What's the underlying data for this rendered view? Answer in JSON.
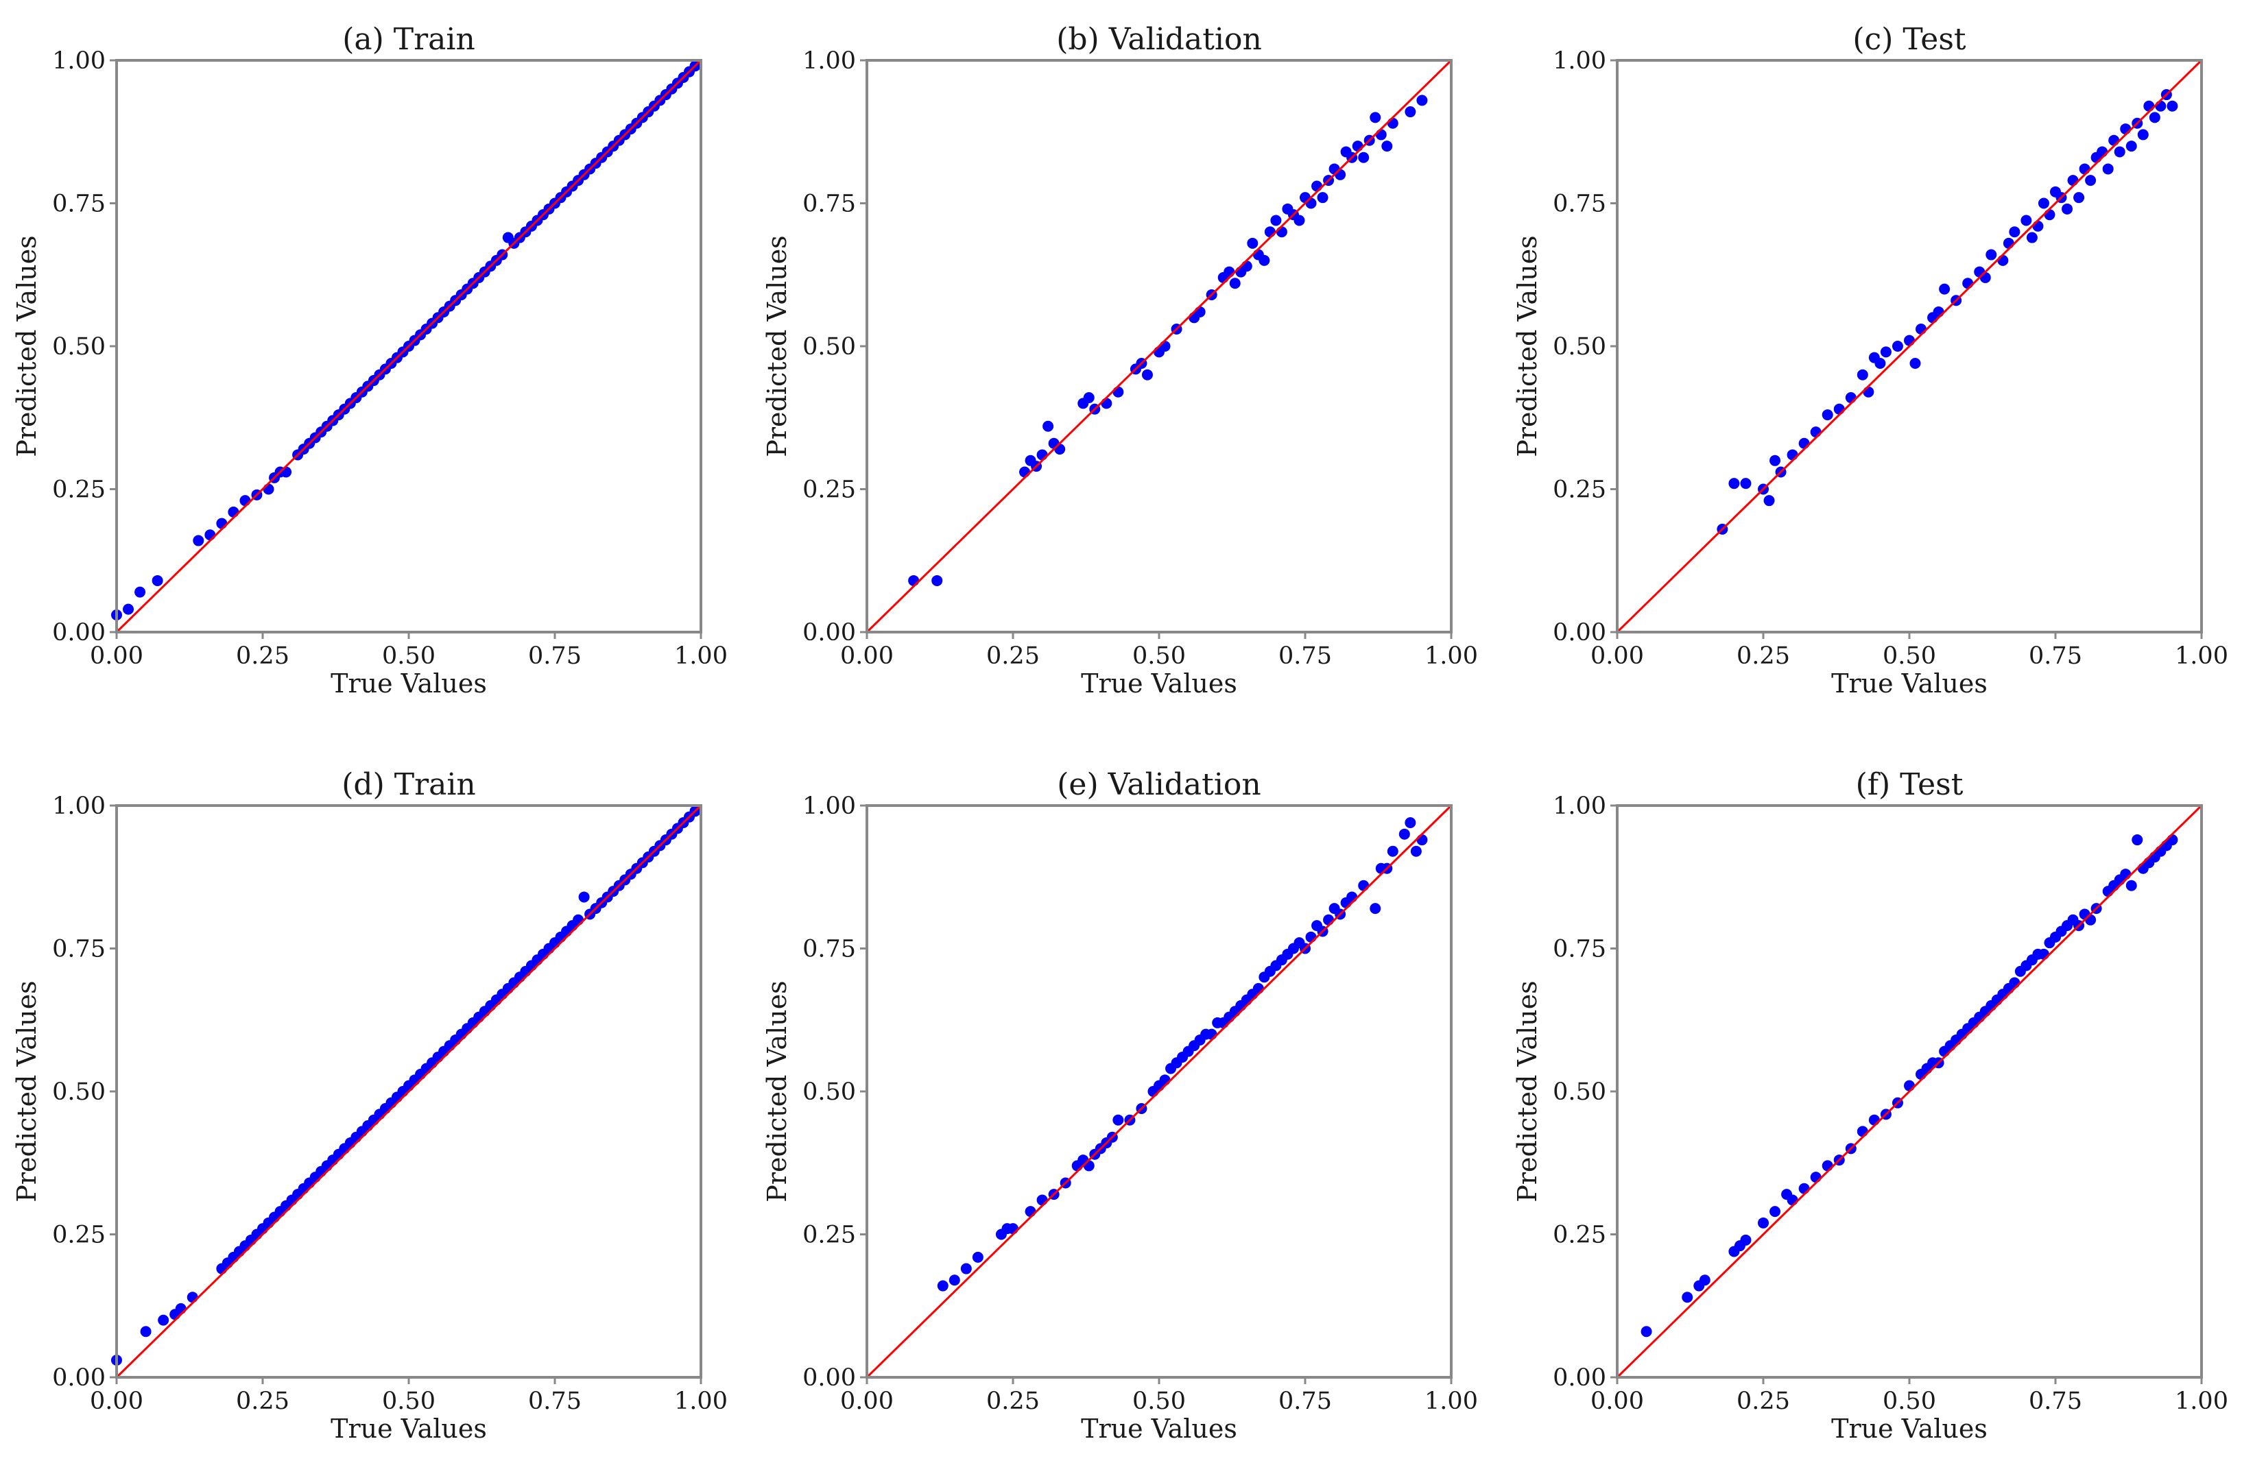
{
  "colors": {
    "point": "#0000ff",
    "ideal_line": "#ff0000",
    "frame": "#888888",
    "text": "#1a1a1a"
  },
  "chart_data": [
    {
      "type": "scatter",
      "title": "(a) Train",
      "xlabel": "True Values",
      "ylabel": "Predicted Values",
      "xlim": [
        0,
        1
      ],
      "ylim": [
        0,
        1
      ],
      "xticks": [
        "0.00",
        "0.25",
        "0.50",
        "0.75",
        "1.00"
      ],
      "yticks": [
        "0.00",
        "0.25",
        "0.50",
        "0.75",
        "1.00"
      ],
      "grid": false,
      "reference_line": [
        [
          0,
          0
        ],
        [
          1,
          1
        ]
      ],
      "series": [
        {
          "x": [
            0.0,
            0.02,
            0.04,
            0.07,
            0.14,
            0.16,
            0.18,
            0.2,
            0.22,
            0.24,
            0.26,
            0.27,
            0.28,
            0.29,
            0.31,
            0.32,
            0.33,
            0.34,
            0.35,
            0.36,
            0.37,
            0.38,
            0.39,
            0.4,
            0.41,
            0.42,
            0.43,
            0.44,
            0.45,
            0.46,
            0.47,
            0.48,
            0.49,
            0.5,
            0.51,
            0.52,
            0.53,
            0.54,
            0.55,
            0.56,
            0.57,
            0.58,
            0.59,
            0.6,
            0.61,
            0.62,
            0.63,
            0.64,
            0.65,
            0.66,
            0.67,
            0.68,
            0.69,
            0.7,
            0.71,
            0.72,
            0.73,
            0.74,
            0.75,
            0.76,
            0.77,
            0.78,
            0.79,
            0.8,
            0.81,
            0.82,
            0.83,
            0.84,
            0.85,
            0.86,
            0.87,
            0.88,
            0.89,
            0.9,
            0.91,
            0.92,
            0.93,
            0.94,
            0.95,
            0.96,
            0.97,
            0.98,
            0.99
          ],
          "y": [
            0.03,
            0.04,
            0.07,
            0.09,
            0.16,
            0.17,
            0.19,
            0.21,
            0.23,
            0.24,
            0.25,
            0.27,
            0.28,
            0.28,
            0.31,
            0.32,
            0.33,
            0.34,
            0.35,
            0.36,
            0.37,
            0.38,
            0.39,
            0.4,
            0.41,
            0.42,
            0.43,
            0.44,
            0.45,
            0.46,
            0.47,
            0.48,
            0.49,
            0.5,
            0.51,
            0.52,
            0.53,
            0.54,
            0.55,
            0.56,
            0.57,
            0.58,
            0.59,
            0.6,
            0.61,
            0.62,
            0.63,
            0.64,
            0.65,
            0.66,
            0.69,
            0.68,
            0.69,
            0.7,
            0.71,
            0.72,
            0.73,
            0.74,
            0.75,
            0.76,
            0.77,
            0.78,
            0.79,
            0.8,
            0.81,
            0.82,
            0.83,
            0.84,
            0.85,
            0.86,
            0.87,
            0.88,
            0.89,
            0.9,
            0.91,
            0.92,
            0.93,
            0.94,
            0.95,
            0.96,
            0.97,
            0.98,
            0.99
          ]
        }
      ]
    },
    {
      "type": "scatter",
      "title": "(b) Validation",
      "xlabel": "True Values",
      "ylabel": "Predicted Values",
      "xlim": [
        0,
        1
      ],
      "ylim": [
        0,
        1
      ],
      "xticks": [
        "0.00",
        "0.25",
        "0.50",
        "0.75",
        "1.00"
      ],
      "yticks": [
        "0.00",
        "0.25",
        "0.50",
        "0.75",
        "1.00"
      ],
      "grid": false,
      "reference_line": [
        [
          0,
          0
        ],
        [
          1,
          1
        ]
      ],
      "series": [
        {
          "x": [
            0.08,
            0.12,
            0.27,
            0.28,
            0.29,
            0.3,
            0.31,
            0.32,
            0.33,
            0.37,
            0.38,
            0.39,
            0.41,
            0.43,
            0.46,
            0.47,
            0.48,
            0.5,
            0.51,
            0.53,
            0.56,
            0.57,
            0.59,
            0.61,
            0.62,
            0.63,
            0.64,
            0.65,
            0.66,
            0.67,
            0.68,
            0.69,
            0.7,
            0.71,
            0.72,
            0.73,
            0.74,
            0.75,
            0.76,
            0.77,
            0.78,
            0.79,
            0.8,
            0.81,
            0.82,
            0.83,
            0.84,
            0.85,
            0.86,
            0.87,
            0.88,
            0.89,
            0.9,
            0.93,
            0.95
          ],
          "y": [
            0.09,
            0.09,
            0.28,
            0.3,
            0.29,
            0.31,
            0.36,
            0.33,
            0.32,
            0.4,
            0.41,
            0.39,
            0.4,
            0.42,
            0.46,
            0.47,
            0.45,
            0.49,
            0.5,
            0.53,
            0.55,
            0.56,
            0.59,
            0.62,
            0.63,
            0.61,
            0.63,
            0.64,
            0.68,
            0.66,
            0.65,
            0.7,
            0.72,
            0.7,
            0.74,
            0.73,
            0.72,
            0.76,
            0.75,
            0.78,
            0.76,
            0.79,
            0.81,
            0.8,
            0.84,
            0.83,
            0.85,
            0.83,
            0.86,
            0.9,
            0.87,
            0.85,
            0.89,
            0.91,
            0.93
          ]
        }
      ]
    },
    {
      "type": "scatter",
      "title": "(c) Test",
      "xlabel": "True Values",
      "ylabel": "Predicted Values",
      "xlim": [
        0,
        1
      ],
      "ylim": [
        0,
        1
      ],
      "xticks": [
        "0.00",
        "0.25",
        "0.50",
        "0.75",
        "1.00"
      ],
      "yticks": [
        "0.00",
        "0.25",
        "0.50",
        "0.75",
        "1.00"
      ],
      "grid": false,
      "reference_line": [
        [
          0,
          0
        ],
        [
          1,
          1
        ]
      ],
      "series": [
        {
          "x": [
            0.18,
            0.2,
            0.22,
            0.25,
            0.26,
            0.27,
            0.28,
            0.3,
            0.32,
            0.34,
            0.36,
            0.38,
            0.4,
            0.42,
            0.43,
            0.44,
            0.45,
            0.46,
            0.48,
            0.5,
            0.51,
            0.52,
            0.54,
            0.55,
            0.56,
            0.58,
            0.6,
            0.62,
            0.63,
            0.64,
            0.66,
            0.67,
            0.68,
            0.7,
            0.71,
            0.72,
            0.73,
            0.74,
            0.75,
            0.76,
            0.77,
            0.78,
            0.79,
            0.8,
            0.81,
            0.82,
            0.83,
            0.84,
            0.85,
            0.86,
            0.87,
            0.88,
            0.89,
            0.9,
            0.91,
            0.92,
            0.93,
            0.94,
            0.95
          ],
          "y": [
            0.18,
            0.26,
            0.26,
            0.25,
            0.23,
            0.3,
            0.28,
            0.31,
            0.33,
            0.35,
            0.38,
            0.39,
            0.41,
            0.45,
            0.42,
            0.48,
            0.47,
            0.49,
            0.5,
            0.51,
            0.47,
            0.53,
            0.55,
            0.56,
            0.6,
            0.58,
            0.61,
            0.63,
            0.62,
            0.66,
            0.65,
            0.68,
            0.7,
            0.72,
            0.69,
            0.71,
            0.75,
            0.73,
            0.77,
            0.76,
            0.74,
            0.79,
            0.76,
            0.81,
            0.79,
            0.83,
            0.84,
            0.81,
            0.86,
            0.84,
            0.88,
            0.85,
            0.89,
            0.87,
            0.92,
            0.9,
            0.92,
            0.94,
            0.92
          ]
        }
      ]
    },
    {
      "type": "scatter",
      "title": "(d) Train",
      "xlabel": "True Values",
      "ylabel": "Predicted Values",
      "xlim": [
        0,
        1
      ],
      "ylim": [
        0,
        1
      ],
      "xticks": [
        "0.00",
        "0.25",
        "0.50",
        "0.75",
        "1.00"
      ],
      "yticks": [
        "0.00",
        "0.25",
        "0.50",
        "0.75",
        "1.00"
      ],
      "grid": false,
      "reference_line": [
        [
          0,
          0
        ],
        [
          1,
          1
        ]
      ],
      "series": [
        {
          "x": [
            0.0,
            0.05,
            0.08,
            0.1,
            0.11,
            0.13,
            0.18,
            0.19,
            0.2,
            0.21,
            0.22,
            0.23,
            0.24,
            0.25,
            0.26,
            0.27,
            0.28,
            0.29,
            0.3,
            0.31,
            0.32,
            0.33,
            0.34,
            0.35,
            0.36,
            0.37,
            0.38,
            0.39,
            0.4,
            0.41,
            0.42,
            0.43,
            0.44,
            0.45,
            0.46,
            0.47,
            0.48,
            0.49,
            0.5,
            0.51,
            0.52,
            0.53,
            0.54,
            0.55,
            0.56,
            0.57,
            0.58,
            0.59,
            0.6,
            0.61,
            0.62,
            0.63,
            0.64,
            0.65,
            0.66,
            0.67,
            0.68,
            0.69,
            0.7,
            0.71,
            0.72,
            0.73,
            0.74,
            0.75,
            0.76,
            0.77,
            0.78,
            0.79,
            0.8,
            0.81,
            0.82,
            0.83,
            0.84,
            0.85,
            0.86,
            0.87,
            0.88,
            0.89,
            0.9,
            0.91,
            0.92,
            0.93,
            0.94,
            0.95,
            0.96,
            0.97,
            0.98,
            0.99
          ],
          "y": [
            0.03,
            0.08,
            0.1,
            0.11,
            0.12,
            0.14,
            0.19,
            0.2,
            0.21,
            0.22,
            0.23,
            0.24,
            0.25,
            0.26,
            0.27,
            0.28,
            0.29,
            0.3,
            0.31,
            0.32,
            0.33,
            0.34,
            0.35,
            0.36,
            0.37,
            0.38,
            0.39,
            0.4,
            0.41,
            0.42,
            0.43,
            0.44,
            0.45,
            0.46,
            0.47,
            0.48,
            0.49,
            0.5,
            0.51,
            0.52,
            0.53,
            0.54,
            0.55,
            0.56,
            0.57,
            0.58,
            0.59,
            0.6,
            0.61,
            0.62,
            0.63,
            0.64,
            0.65,
            0.66,
            0.67,
            0.68,
            0.69,
            0.7,
            0.71,
            0.72,
            0.73,
            0.74,
            0.75,
            0.76,
            0.77,
            0.78,
            0.79,
            0.8,
            0.84,
            0.81,
            0.82,
            0.83,
            0.84,
            0.85,
            0.86,
            0.87,
            0.88,
            0.89,
            0.9,
            0.91,
            0.92,
            0.93,
            0.94,
            0.95,
            0.96,
            0.97,
            0.98,
            0.99
          ]
        }
      ]
    },
    {
      "type": "scatter",
      "title": "(e) Validation",
      "xlabel": "True Values",
      "ylabel": "Predicted Values",
      "xlim": [
        0,
        1
      ],
      "ylim": [
        0,
        1
      ],
      "xticks": [
        "0.00",
        "0.25",
        "0.50",
        "0.75",
        "1.00"
      ],
      "yticks": [
        "0.00",
        "0.25",
        "0.50",
        "0.75",
        "1.00"
      ],
      "grid": false,
      "reference_line": [
        [
          0,
          0
        ],
        [
          1,
          1
        ]
      ],
      "series": [
        {
          "x": [
            0.13,
            0.15,
            0.17,
            0.19,
            0.23,
            0.24,
            0.25,
            0.28,
            0.3,
            0.32,
            0.34,
            0.36,
            0.37,
            0.38,
            0.39,
            0.4,
            0.41,
            0.42,
            0.43,
            0.45,
            0.47,
            0.49,
            0.5,
            0.51,
            0.52,
            0.53,
            0.54,
            0.55,
            0.56,
            0.57,
            0.58,
            0.59,
            0.6,
            0.61,
            0.62,
            0.63,
            0.64,
            0.65,
            0.66,
            0.67,
            0.68,
            0.69,
            0.7,
            0.71,
            0.72,
            0.73,
            0.74,
            0.75,
            0.76,
            0.77,
            0.78,
            0.79,
            0.8,
            0.81,
            0.82,
            0.83,
            0.85,
            0.87,
            0.88,
            0.89,
            0.9,
            0.92,
            0.93,
            0.94,
            0.95
          ],
          "y": [
            0.16,
            0.17,
            0.19,
            0.21,
            0.25,
            0.26,
            0.26,
            0.29,
            0.31,
            0.32,
            0.34,
            0.37,
            0.38,
            0.37,
            0.39,
            0.4,
            0.41,
            0.42,
            0.45,
            0.45,
            0.47,
            0.5,
            0.51,
            0.52,
            0.54,
            0.55,
            0.56,
            0.57,
            0.58,
            0.59,
            0.6,
            0.6,
            0.62,
            0.62,
            0.63,
            0.64,
            0.65,
            0.66,
            0.67,
            0.68,
            0.7,
            0.71,
            0.72,
            0.73,
            0.74,
            0.75,
            0.76,
            0.75,
            0.77,
            0.79,
            0.78,
            0.8,
            0.82,
            0.81,
            0.83,
            0.84,
            0.86,
            0.82,
            0.89,
            0.89,
            0.92,
            0.95,
            0.97,
            0.92,
            0.94
          ]
        }
      ]
    },
    {
      "type": "scatter",
      "title": "(f) Test",
      "xlabel": "True Values",
      "ylabel": "Predicted Values",
      "xlim": [
        0,
        1
      ],
      "ylim": [
        0,
        1
      ],
      "xticks": [
        "0.00",
        "0.25",
        "0.50",
        "0.75",
        "1.00"
      ],
      "yticks": [
        "0.00",
        "0.25",
        "0.50",
        "0.75",
        "1.00"
      ],
      "grid": false,
      "reference_line": [
        [
          0,
          0
        ],
        [
          1,
          1
        ]
      ],
      "series": [
        {
          "x": [
            0.05,
            0.12,
            0.14,
            0.15,
            0.2,
            0.21,
            0.22,
            0.25,
            0.27,
            0.29,
            0.3,
            0.32,
            0.34,
            0.36,
            0.38,
            0.4,
            0.42,
            0.44,
            0.46,
            0.48,
            0.5,
            0.52,
            0.53,
            0.54,
            0.55,
            0.56,
            0.57,
            0.58,
            0.59,
            0.6,
            0.61,
            0.62,
            0.63,
            0.64,
            0.65,
            0.66,
            0.67,
            0.68,
            0.69,
            0.7,
            0.71,
            0.72,
            0.73,
            0.74,
            0.75,
            0.76,
            0.77,
            0.78,
            0.79,
            0.8,
            0.81,
            0.82,
            0.84,
            0.85,
            0.86,
            0.87,
            0.88,
            0.89,
            0.9,
            0.91,
            0.92,
            0.93,
            0.94,
            0.95
          ],
          "y": [
            0.08,
            0.14,
            0.16,
            0.17,
            0.22,
            0.23,
            0.24,
            0.27,
            0.29,
            0.32,
            0.31,
            0.33,
            0.35,
            0.37,
            0.38,
            0.4,
            0.43,
            0.45,
            0.46,
            0.48,
            0.51,
            0.53,
            0.54,
            0.55,
            0.55,
            0.57,
            0.58,
            0.59,
            0.6,
            0.61,
            0.62,
            0.63,
            0.64,
            0.65,
            0.66,
            0.67,
            0.68,
            0.69,
            0.71,
            0.72,
            0.73,
            0.74,
            0.74,
            0.76,
            0.77,
            0.78,
            0.79,
            0.8,
            0.79,
            0.81,
            0.8,
            0.82,
            0.85,
            0.86,
            0.87,
            0.88,
            0.86,
            0.94,
            0.89,
            0.9,
            0.91,
            0.92,
            0.93,
            0.94
          ]
        }
      ]
    }
  ]
}
